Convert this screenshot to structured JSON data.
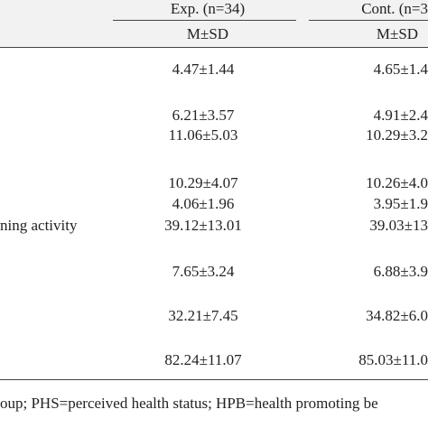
{
  "table": {
    "header": {
      "columns": [
        "Exp. (n=34)",
        "Cont. (n=3"
      ],
      "subheaders": [
        "M±SD",
        "M±SD"
      ]
    },
    "rows": [
      {
        "exp": "4.47±1.44",
        "cont": "4.65±1.4"
      },
      {
        "exp": "6.21±3.57",
        "cont": "4.91±2.4"
      },
      {
        "exp": "11.06±5.03",
        "cont": "10.29±3.2"
      },
      {
        "exp": "10.29±4.07",
        "cont": "10.26±4.0"
      },
      {
        "exp": "4.06±1.96",
        "cont": "3.95±1.9"
      },
      {
        "label": "ning activity",
        "exp": "39.12±13.01",
        "cont": "39.03±13"
      },
      {
        "exp": "7.65±3.24",
        "cont": "6.88±3.9"
      },
      {
        "exp": "32.21±7.45",
        "cont": "34.82±6.0"
      },
      {
        "exp": "82.24±11.07",
        "cont": "85.03±11.0"
      }
    ],
    "footnote": "oup; PHS=perceived health status; HPB=health promoting be"
  }
}
